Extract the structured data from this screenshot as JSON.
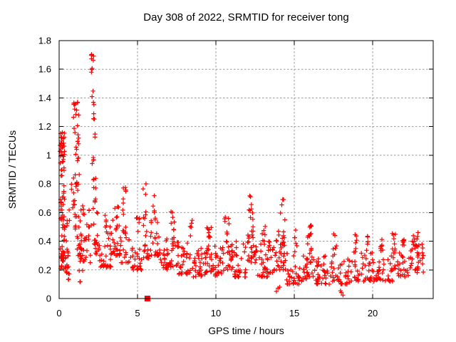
{
  "chart_data": {
    "type": "scatter",
    "title": "Day 308 of 2022, SRMTID for receiver tong",
    "xlabel": "GPS time / hours",
    "ylabel": "SRMTID / TECUs",
    "xlim": [
      0,
      23.86
    ],
    "ylim": [
      0,
      1.8
    ],
    "xticks": [
      {
        "v": 0,
        "label": "0"
      },
      {
        "v": 5,
        "label": "5"
      },
      {
        "v": 10,
        "label": "10"
      },
      {
        "v": 15,
        "label": "15"
      },
      {
        "v": 20,
        "label": "20"
      }
    ],
    "yticks": [
      {
        "v": 0,
        "label": "0"
      },
      {
        "v": 0.2,
        "label": "0.2"
      },
      {
        "v": 0.4,
        "label": "0.4"
      },
      {
        "v": 0.6,
        "label": "0.6"
      },
      {
        "v": 0.8,
        "label": "0.8"
      },
      {
        "v": 1,
        "label": "1"
      },
      {
        "v": 1.2,
        "label": "1.2"
      },
      {
        "v": 1.4,
        "label": "1.4"
      },
      {
        "v": 1.6,
        "label": "1.6"
      },
      {
        "v": 1.8,
        "label": "1.8"
      }
    ],
    "grid": true,
    "legend": "none",
    "marker": {
      "shape": "plus",
      "color": "#ff0000",
      "size": 3.2,
      "stroke_width": 1.2
    },
    "grid_color": "#999999",
    "border_color": "#000000",
    "background": "#ffffff",
    "special_points": [
      {
        "x": 5.63,
        "y": 0.0,
        "shape": "filled-square",
        "color": "#ff0000",
        "size": 8
      }
    ],
    "max_point": {
      "x": 2.1,
      "y": 1.72
    },
    "point_bins_format": [
      "x_start",
      "x_end",
      "count",
      "y_min",
      "y_max",
      "y_distribution 0=uniform 1=bottom-heavy 2=top-heavy"
    ],
    "point_bins": [
      [
        0.05,
        0.35,
        30,
        0.92,
        1.16,
        2
      ],
      [
        0.05,
        0.35,
        22,
        0.55,
        0.92,
        0
      ],
      [
        0.07,
        0.4,
        26,
        0.28,
        0.58,
        1
      ],
      [
        0.1,
        0.3,
        8,
        0.2,
        0.3,
        0
      ],
      [
        0.3,
        0.6,
        14,
        0.18,
        0.45,
        1
      ],
      [
        0.45,
        0.7,
        8,
        0.3,
        0.62,
        0
      ],
      [
        0.55,
        0.75,
        4,
        0.13,
        0.2,
        0
      ],
      [
        0.75,
        1.1,
        10,
        0.6,
        0.88,
        0
      ],
      [
        0.9,
        1.25,
        10,
        1.28,
        1.38,
        0
      ],
      [
        0.9,
        1.25,
        14,
        0.95,
        1.28,
        0
      ],
      [
        0.95,
        1.3,
        12,
        0.55,
        0.95,
        0
      ],
      [
        1.0,
        1.4,
        16,
        0.3,
        0.55,
        1
      ],
      [
        1.2,
        1.5,
        4,
        0.1,
        0.2,
        0
      ],
      [
        1.3,
        1.65,
        16,
        0.26,
        0.52,
        1
      ],
      [
        1.35,
        1.6,
        5,
        0.52,
        0.66,
        0
      ],
      [
        1.65,
        2.05,
        14,
        0.24,
        0.62,
        0
      ],
      [
        2.05,
        2.2,
        9,
        1.55,
        1.72,
        2
      ],
      [
        2.08,
        2.25,
        7,
        1.2,
        1.5,
        0
      ],
      [
        2.1,
        2.3,
        6,
        0.9,
        1.15,
        0
      ],
      [
        2.15,
        2.4,
        10,
        0.6,
        0.9,
        0
      ],
      [
        2.2,
        2.5,
        12,
        0.35,
        0.62,
        1
      ],
      [
        2.3,
        2.6,
        10,
        0.25,
        0.4,
        0
      ],
      [
        2.6,
        3.3,
        26,
        0.22,
        0.5,
        1
      ],
      [
        2.9,
        3.3,
        8,
        0.45,
        0.62,
        0
      ],
      [
        3.3,
        3.95,
        24,
        0.3,
        0.55,
        1
      ],
      [
        3.5,
        3.8,
        6,
        0.5,
        0.65,
        0
      ],
      [
        3.95,
        4.3,
        10,
        0.45,
        0.78,
        0
      ],
      [
        3.9,
        4.6,
        20,
        0.25,
        0.48,
        1
      ],
      [
        4.6,
        5.3,
        24,
        0.2,
        0.45,
        1
      ],
      [
        4.9,
        5.15,
        6,
        0.45,
        0.62,
        0
      ],
      [
        5.35,
        5.55,
        8,
        0.5,
        0.81,
        0
      ],
      [
        5.3,
        5.8,
        16,
        0.28,
        0.5,
        1
      ],
      [
        5.95,
        6.15,
        6,
        0.55,
        0.75,
        0
      ],
      [
        5.8,
        6.4,
        20,
        0.3,
        0.55,
        1
      ],
      [
        6.4,
        7.0,
        24,
        0.2,
        0.42,
        1
      ],
      [
        7.1,
        7.4,
        8,
        0.42,
        0.62,
        0
      ],
      [
        7.0,
        7.6,
        20,
        0.22,
        0.42,
        1
      ],
      [
        7.6,
        8.4,
        30,
        0.17,
        0.4,
        1
      ],
      [
        8.35,
        8.55,
        5,
        0.4,
        0.56,
        0
      ],
      [
        8.5,
        9.3,
        30,
        0.15,
        0.35,
        1
      ],
      [
        9.4,
        9.7,
        14,
        0.3,
        0.52,
        0
      ],
      [
        9.3,
        9.9,
        20,
        0.18,
        0.35,
        1
      ],
      [
        9.9,
        10.5,
        26,
        0.15,
        0.38,
        1
      ],
      [
        10.55,
        10.85,
        10,
        0.35,
        0.58,
        0
      ],
      [
        10.5,
        11.1,
        20,
        0.2,
        0.4,
        1
      ],
      [
        11.1,
        11.9,
        30,
        0.15,
        0.42,
        1
      ],
      [
        12.15,
        12.3,
        4,
        0.62,
        0.73,
        0
      ],
      [
        12.1,
        12.4,
        12,
        0.42,
        0.62,
        0
      ],
      [
        12.0,
        12.6,
        22,
        0.25,
        0.45,
        1
      ],
      [
        12.6,
        13.4,
        30,
        0.15,
        0.4,
        1
      ],
      [
        12.95,
        13.15,
        6,
        0.4,
        0.52,
        0
      ],
      [
        13.4,
        13.9,
        18,
        0.18,
        0.42,
        1
      ],
      [
        14.2,
        14.35,
        3,
        0.6,
        0.71,
        0
      ],
      [
        14.0,
        14.4,
        12,
        0.35,
        0.6,
        0
      ],
      [
        13.9,
        14.5,
        18,
        0.2,
        0.4,
        1
      ],
      [
        13.8,
        14.1,
        3,
        0.04,
        0.08,
        0
      ],
      [
        14.5,
        15.3,
        28,
        0.1,
        0.32,
        1
      ],
      [
        15.0,
        15.2,
        6,
        0.32,
        0.48,
        0
      ],
      [
        15.3,
        15.8,
        16,
        0.12,
        0.3,
        1
      ],
      [
        15.85,
        16.1,
        14,
        0.3,
        0.55,
        0
      ],
      [
        15.8,
        16.3,
        16,
        0.15,
        0.3,
        1
      ],
      [
        16.3,
        17.3,
        34,
        0.1,
        0.3,
        1
      ],
      [
        17.45,
        17.7,
        8,
        0.28,
        0.47,
        0
      ],
      [
        17.3,
        17.9,
        16,
        0.12,
        0.28,
        1
      ],
      [
        17.9,
        18.15,
        3,
        0.02,
        0.06,
        0
      ],
      [
        17.9,
        18.6,
        22,
        0.1,
        0.28,
        1
      ],
      [
        18.8,
        19.0,
        7,
        0.28,
        0.47,
        0
      ],
      [
        18.6,
        19.2,
        16,
        0.12,
        0.28,
        1
      ],
      [
        19.2,
        20.0,
        26,
        0.12,
        0.32,
        1
      ],
      [
        19.5,
        19.7,
        5,
        0.32,
        0.44,
        0
      ],
      [
        20.0,
        20.8,
        26,
        0.12,
        0.35,
        1
      ],
      [
        20.4,
        20.6,
        5,
        0.32,
        0.42,
        0
      ],
      [
        21.25,
        21.5,
        8,
        0.3,
        0.47,
        0
      ],
      [
        20.8,
        21.6,
        22,
        0.12,
        0.32,
        1
      ],
      [
        21.6,
        22.4,
        26,
        0.15,
        0.38,
        1
      ],
      [
        21.9,
        22.1,
        5,
        0.35,
        0.45,
        0
      ],
      [
        22.4,
        23.25,
        30,
        0.18,
        0.4,
        0
      ],
      [
        22.5,
        23.2,
        10,
        0.35,
        0.47,
        0
      ]
    ]
  }
}
